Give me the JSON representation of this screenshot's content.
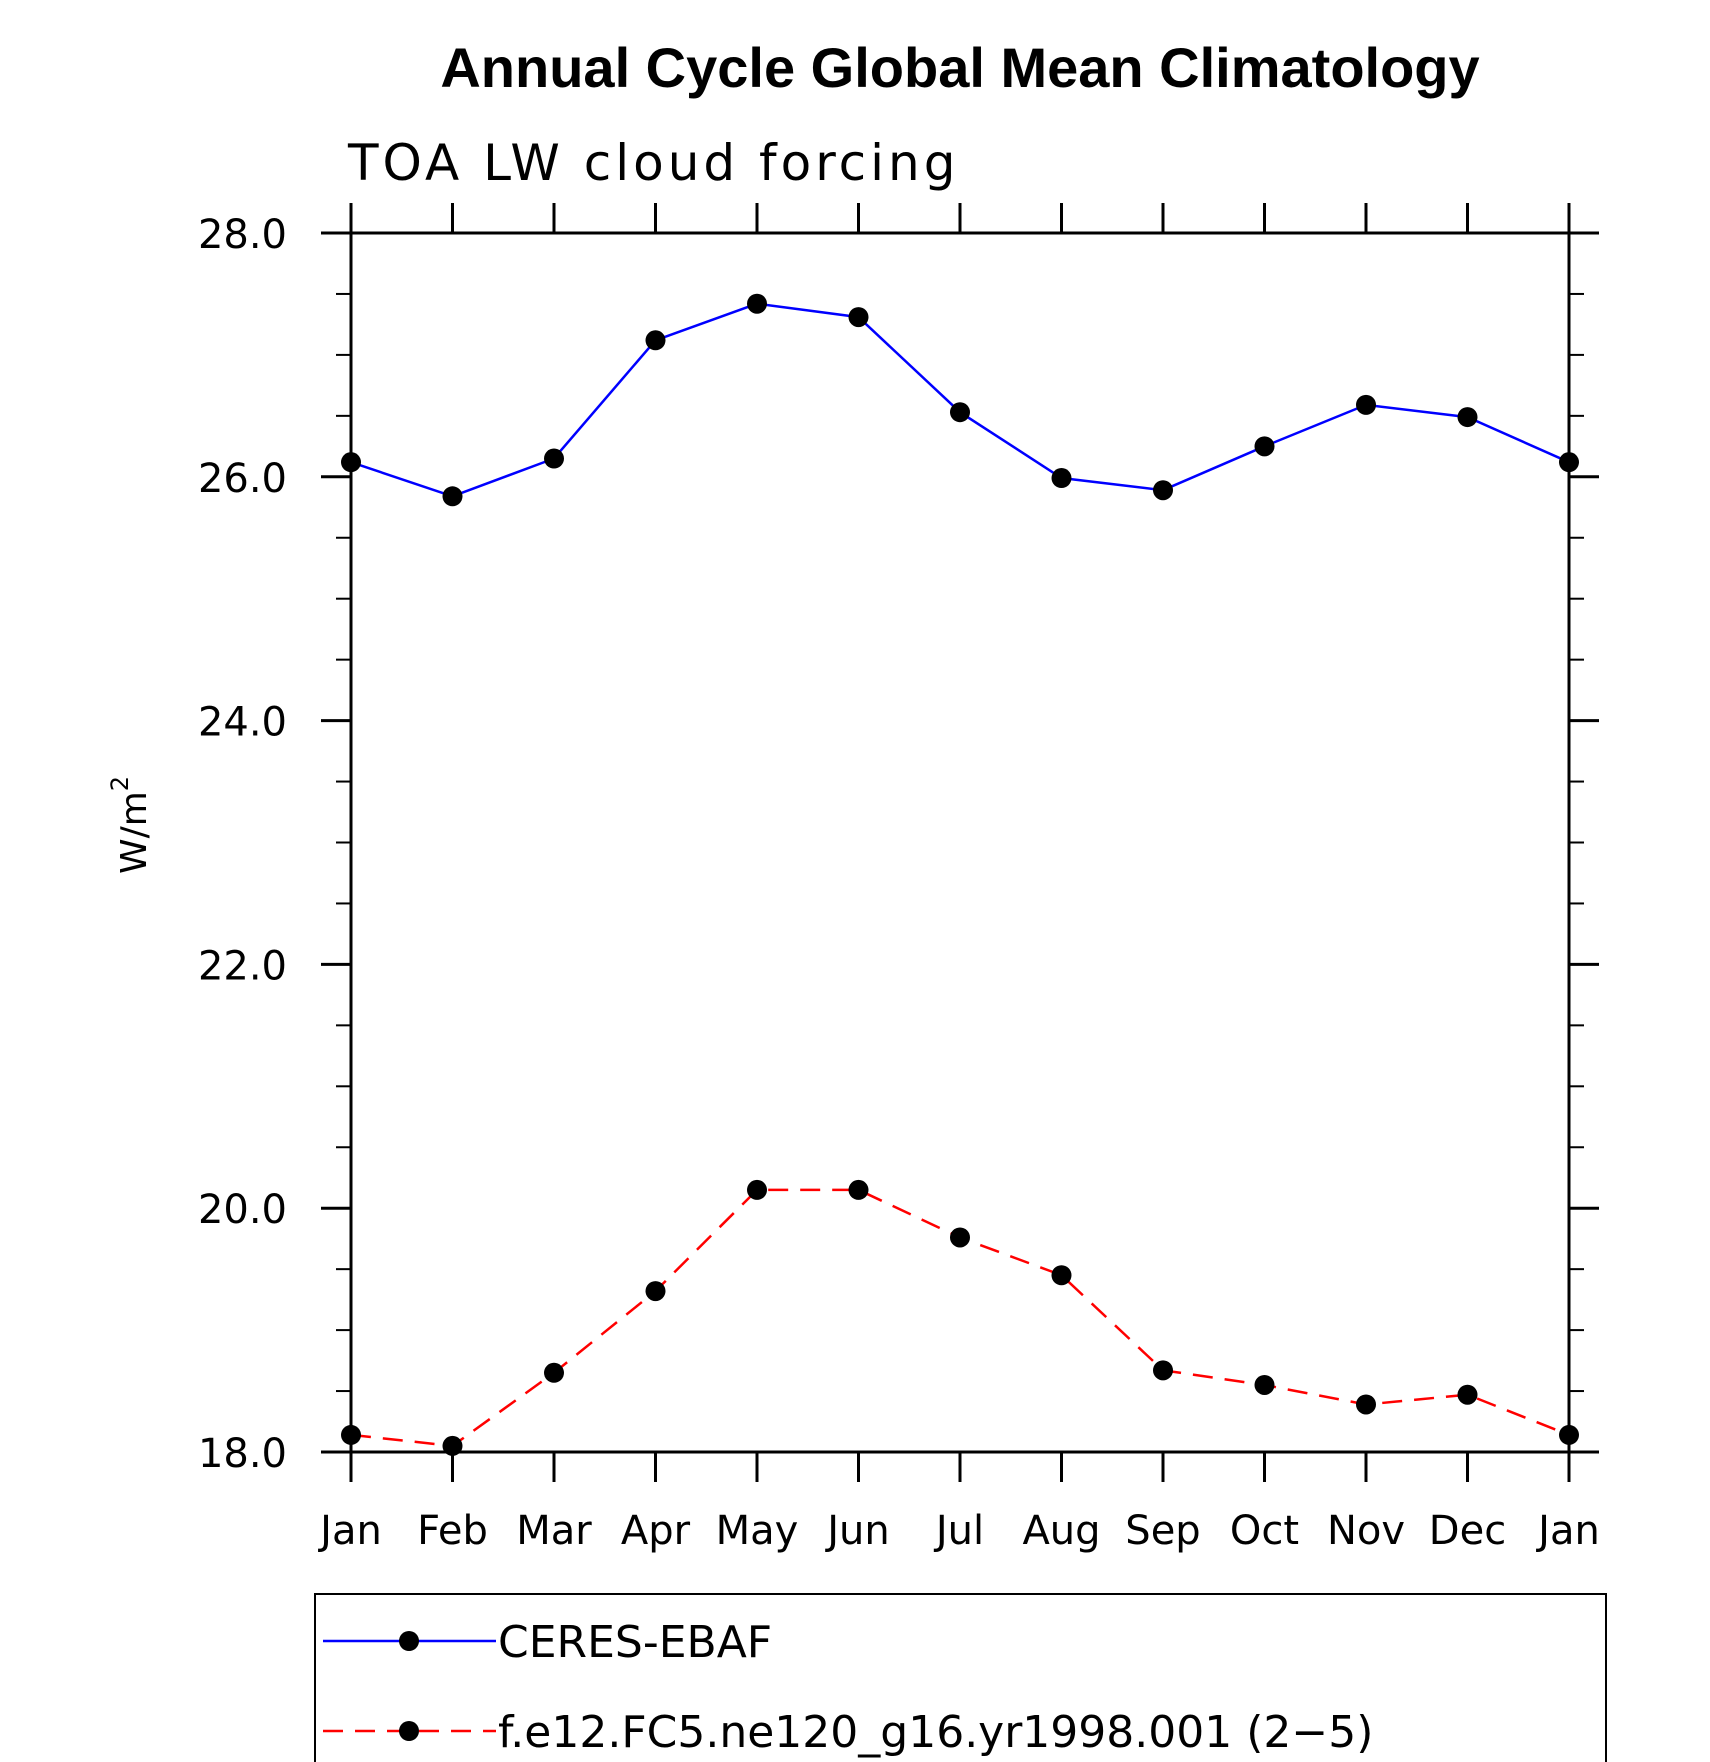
{
  "chart_data": {
    "type": "line",
    "title": "Annual Cycle Global Mean Climatology",
    "subtitle": "TOA LW cloud forcing",
    "ylabel": "W/m",
    "ylabel_superscript": "2",
    "xlabel": "",
    "ylim": [
      18.0,
      28.0
    ],
    "y_major_ticks": [
      18.0,
      20.0,
      22.0,
      24.0,
      26.0,
      28.0
    ],
    "y_tick_labels": [
      "18.0",
      "20.0",
      "22.0",
      "24.0",
      "26.0",
      "28.0"
    ],
    "y_minor_step": 0.5,
    "categories": [
      "Jan",
      "Feb",
      "Mar",
      "Apr",
      "May",
      "Jun",
      "Jul",
      "Aug",
      "Sep",
      "Oct",
      "Nov",
      "Dec",
      "Jan"
    ],
    "grid": false,
    "legend_position": "bottom",
    "series": [
      {
        "name": "CERES-EBAF",
        "color": "#0000ff",
        "line_style": "solid",
        "marker": "filled-circle",
        "values": [
          26.12,
          25.84,
          26.15,
          27.12,
          27.42,
          27.31,
          26.53,
          25.99,
          25.89,
          26.25,
          26.59,
          26.49,
          26.12
        ]
      },
      {
        "name": "f.e12.FC5.ne120_g16.yr1998.001 (2−5)",
        "color": "#ff0000",
        "line_style": "dashed",
        "marker": "filled-circle",
        "values": [
          18.14,
          18.05,
          18.65,
          19.32,
          20.15,
          20.15,
          19.76,
          19.45,
          18.67,
          18.55,
          18.39,
          18.47,
          18.14
        ]
      }
    ]
  }
}
